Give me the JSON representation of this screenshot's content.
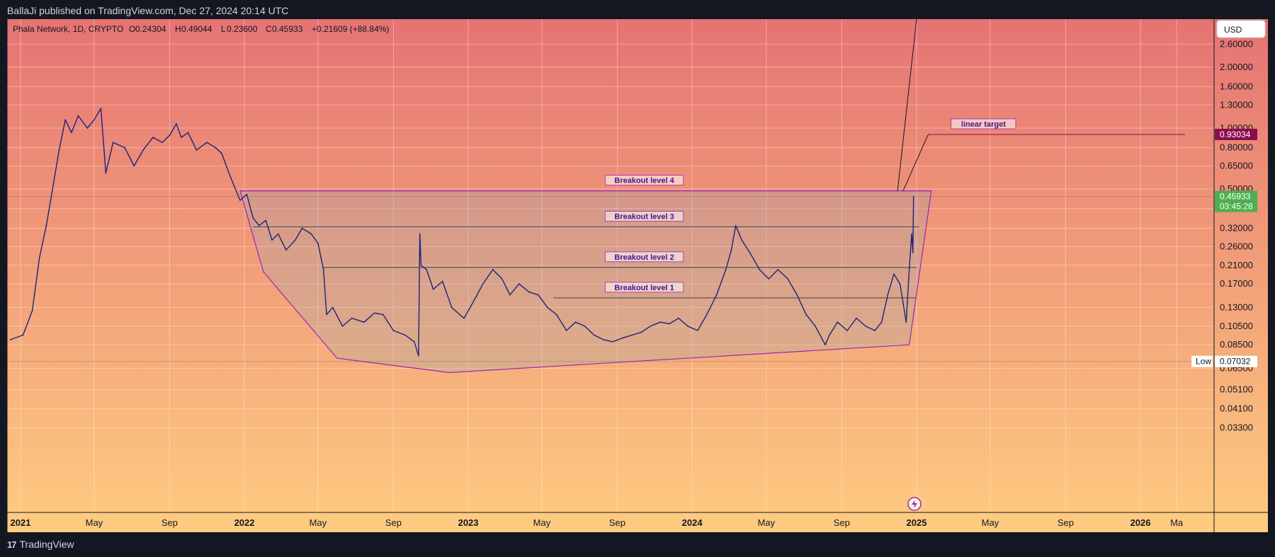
{
  "header": {
    "published": "BallaJi published on TradingView.com, Dec 27, 2024 20:14 UTC"
  },
  "legend": {
    "symbol": "Phala Network, 1D, CRYPTO",
    "o_label": "O",
    "o": "0.24304",
    "h_label": "H",
    "h": "0.49044",
    "l_label": "L",
    "l": "0.23600",
    "c_label": "C",
    "c": "0.45933",
    "change": "+0.21609 (+88.84%)"
  },
  "currency": "USD",
  "footer": {
    "brand": "TradingView"
  },
  "badges": {
    "target_value": "0.93034",
    "last_price": "0.45933",
    "countdown": "03:45:28",
    "low_label": "Low",
    "low_value": "0.07032"
  },
  "colors": {
    "bg_top": "#e57373",
    "bg_bottom": "#ffcc80",
    "price_line": "#1a237e",
    "zone_line": "#9c27b0",
    "target_badge": "#880e4f",
    "last_badge": "#4caf50"
  },
  "chart_data": {
    "type": "line",
    "title": "Phala Network, 1D, CRYPTO",
    "scale": "log",
    "y_ticks": [
      "2.60000",
      "2.00000",
      "1.60000",
      "1.30000",
      "1.00000",
      "0.80000",
      "0.65000",
      "0.50000",
      "0.40000",
      "0.32000",
      "0.26000",
      "0.21000",
      "0.17000",
      "0.13000",
      "0.10500",
      "0.08500",
      "0.06500",
      "0.05100",
      "0.04100",
      "0.03300"
    ],
    "x_ticks": [
      {
        "label": "2021",
        "date": "2021-01-01",
        "year": true
      },
      {
        "label": "May",
        "date": "2021-05-01",
        "year": false
      },
      {
        "label": "Sep",
        "date": "2021-09-01",
        "year": false
      },
      {
        "label": "2022",
        "date": "2022-01-01",
        "year": true
      },
      {
        "label": "May",
        "date": "2022-05-01",
        "year": false
      },
      {
        "label": "Sep",
        "date": "2022-09-01",
        "year": false
      },
      {
        "label": "2023",
        "date": "2023-01-01",
        "year": true
      },
      {
        "label": "May",
        "date": "2023-05-01",
        "year": false
      },
      {
        "label": "Sep",
        "date": "2023-09-01",
        "year": false
      },
      {
        "label": "2024",
        "date": "2024-01-01",
        "year": true
      },
      {
        "label": "May",
        "date": "2024-05-01",
        "year": false
      },
      {
        "label": "Sep",
        "date": "2024-09-01",
        "year": false
      },
      {
        "label": "2025",
        "date": "2025-01-01",
        "year": true
      },
      {
        "label": "May",
        "date": "2025-05-01",
        "year": false
      },
      {
        "label": "Sep",
        "date": "2025-09-01",
        "year": false
      },
      {
        "label": "2026",
        "date": "2026-01-01",
        "year": true
      },
      {
        "label": "Ma",
        "date": "2026-03-01",
        "year": false
      }
    ],
    "series": [
      {
        "points": [
          [
            "2020-12-15",
            0.09
          ],
          [
            "2021-01-05",
            0.095
          ],
          [
            "2021-01-20",
            0.125
          ],
          [
            "2021-02-01",
            0.23
          ],
          [
            "2021-02-12",
            0.33
          ],
          [
            "2021-02-25",
            0.56
          ],
          [
            "2021-03-05",
            0.78
          ],
          [
            "2021-03-15",
            1.1
          ],
          [
            "2021-03-25",
            0.95
          ],
          [
            "2021-04-05",
            1.15
          ],
          [
            "2021-04-20",
            1.0
          ],
          [
            "2021-05-01",
            1.1
          ],
          [
            "2021-05-12",
            1.25
          ],
          [
            "2021-05-20",
            0.6
          ],
          [
            "2021-06-01",
            0.85
          ],
          [
            "2021-06-20",
            0.8
          ],
          [
            "2021-07-05",
            0.65
          ],
          [
            "2021-07-20",
            0.78
          ],
          [
            "2021-08-05",
            0.9
          ],
          [
            "2021-08-20",
            0.85
          ],
          [
            "2021-09-01",
            0.92
          ],
          [
            "2021-09-12",
            1.05
          ],
          [
            "2021-09-20",
            0.9
          ],
          [
            "2021-10-01",
            0.95
          ],
          [
            "2021-10-15",
            0.78
          ],
          [
            "2021-11-01",
            0.85
          ],
          [
            "2021-11-15",
            0.8
          ],
          [
            "2021-11-25",
            0.75
          ],
          [
            "2021-12-05",
            0.62
          ],
          [
            "2021-12-15",
            0.52
          ],
          [
            "2021-12-25",
            0.44
          ],
          [
            "2022-01-05",
            0.47
          ],
          [
            "2022-01-15",
            0.36
          ],
          [
            "2022-01-25",
            0.33
          ],
          [
            "2022-02-05",
            0.35
          ],
          [
            "2022-02-15",
            0.28
          ],
          [
            "2022-02-25",
            0.3
          ],
          [
            "2022-03-10",
            0.25
          ],
          [
            "2022-03-25",
            0.28
          ],
          [
            "2022-04-05",
            0.32
          ],
          [
            "2022-04-20",
            0.3
          ],
          [
            "2022-05-01",
            0.27
          ],
          [
            "2022-05-10",
            0.2
          ],
          [
            "2022-05-15",
            0.12
          ],
          [
            "2022-05-25",
            0.13
          ],
          [
            "2022-06-10",
            0.105
          ],
          [
            "2022-06-25",
            0.115
          ],
          [
            "2022-07-15",
            0.11
          ],
          [
            "2022-08-01",
            0.122
          ],
          [
            "2022-08-15",
            0.12
          ],
          [
            "2022-09-01",
            0.1
          ],
          [
            "2022-09-20",
            0.095
          ],
          [
            "2022-10-05",
            0.088
          ],
          [
            "2022-10-12",
            0.075
          ],
          [
            "2022-10-14",
            0.3
          ],
          [
            "2022-10-16",
            0.21
          ],
          [
            "2022-10-25",
            0.2
          ],
          [
            "2022-11-05",
            0.16
          ],
          [
            "2022-11-20",
            0.175
          ],
          [
            "2022-12-05",
            0.13
          ],
          [
            "2022-12-25",
            0.115
          ],
          [
            "2023-01-10",
            0.14
          ],
          [
            "2023-01-25",
            0.17
          ],
          [
            "2023-02-10",
            0.2
          ],
          [
            "2023-02-25",
            0.18
          ],
          [
            "2023-03-10",
            0.15
          ],
          [
            "2023-03-25",
            0.17
          ],
          [
            "2023-04-10",
            0.155
          ],
          [
            "2023-04-25",
            0.15
          ],
          [
            "2023-05-10",
            0.13
          ],
          [
            "2023-05-25",
            0.12
          ],
          [
            "2023-06-10",
            0.1
          ],
          [
            "2023-06-25",
            0.11
          ],
          [
            "2023-07-10",
            0.105
          ],
          [
            "2023-07-25",
            0.095
          ],
          [
            "2023-08-10",
            0.09
          ],
          [
            "2023-08-25",
            0.088
          ],
          [
            "2023-09-10",
            0.092
          ],
          [
            "2023-09-25",
            0.095
          ],
          [
            "2023-10-10",
            0.098
          ],
          [
            "2023-10-25",
            0.105
          ],
          [
            "2023-11-10",
            0.11
          ],
          [
            "2023-11-25",
            0.108
          ],
          [
            "2023-12-10",
            0.115
          ],
          [
            "2023-12-25",
            0.105
          ],
          [
            "2024-01-10",
            0.1
          ],
          [
            "2024-01-25",
            0.12
          ],
          [
            "2024-02-10",
            0.15
          ],
          [
            "2024-02-25",
            0.2
          ],
          [
            "2024-03-05",
            0.25
          ],
          [
            "2024-03-12",
            0.33
          ],
          [
            "2024-03-22",
            0.28
          ],
          [
            "2024-04-05",
            0.24
          ],
          [
            "2024-04-20",
            0.2
          ],
          [
            "2024-05-05",
            0.18
          ],
          [
            "2024-05-20",
            0.2
          ],
          [
            "2024-06-05",
            0.18
          ],
          [
            "2024-06-20",
            0.15
          ],
          [
            "2024-07-05",
            0.12
          ],
          [
            "2024-07-20",
            0.105
          ],
          [
            "2024-08-05",
            0.085
          ],
          [
            "2024-08-12",
            0.095
          ],
          [
            "2024-08-25",
            0.11
          ],
          [
            "2024-09-10",
            0.1
          ],
          [
            "2024-09-25",
            0.115
          ],
          [
            "2024-10-10",
            0.105
          ],
          [
            "2024-10-25",
            0.1
          ],
          [
            "2024-11-05",
            0.11
          ],
          [
            "2024-11-15",
            0.15
          ],
          [
            "2024-11-25",
            0.19
          ],
          [
            "2024-12-05",
            0.17
          ],
          [
            "2024-12-15",
            0.11
          ],
          [
            "2024-12-20",
            0.2
          ],
          [
            "2024-12-24",
            0.3
          ],
          [
            "2024-12-26",
            0.243
          ],
          [
            "2024-12-27",
            0.459
          ]
        ]
      }
    ],
    "annotations": [
      {
        "label": "Breakout level 4",
        "y": 0.49,
        "x1": "2021-12-25",
        "x2": "2025-01-25",
        "label_x": "2023-10-15"
      },
      {
        "label": "Breakout level 3",
        "y": 0.325,
        "x1": "2022-01-15",
        "x2": "2025-01-05",
        "label_x": "2023-10-15"
      },
      {
        "label": "Breakout level 2",
        "y": 0.205,
        "x1": "2022-05-10",
        "x2": "2025-01-01",
        "label_x": "2023-10-15"
      },
      {
        "label": "Breakout level 1",
        "y": 0.145,
        "x1": "2023-05-20",
        "x2": "2025-01-01",
        "label_x": "2023-10-15"
      },
      {
        "label": "linear target",
        "y": 0.93034,
        "x1": "2025-01-20",
        "x2": "2026-03-15",
        "label_x": "2025-04-20"
      }
    ],
    "zone": [
      [
        "2021-12-25",
        0.49
      ],
      [
        "2022-02-01",
        0.195
      ],
      [
        "2022-06-01",
        0.073
      ],
      [
        "2022-12-01",
        0.062
      ],
      [
        "2024-12-20",
        0.085
      ],
      [
        "2025-01-25",
        0.49
      ]
    ],
    "target_line": [
      [
        "2024-12-10",
        0.49
      ],
      [
        "2025-01-20",
        0.93034
      ]
    ],
    "steep_line": [
      [
        "2024-12-01",
        0.49
      ],
      [
        "2025-01-01",
        3.5
      ]
    ],
    "low": 0.07032,
    "last": 0.45933
  }
}
